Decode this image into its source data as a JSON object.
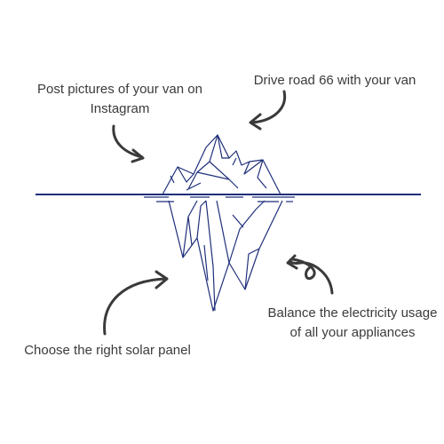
{
  "labels": {
    "post": [
      "Post pictures of your van on",
      "Instagram"
    ],
    "drive": [
      "Drive road 66 with your van"
    ],
    "balance": [
      "Balance the electricity usage",
      "of all your appliances"
    ],
    "solar": [
      "Choose the right solar panel"
    ]
  },
  "colors": {
    "iceberg_stroke": "#1f2f7a",
    "arrow": "#3a3a3a",
    "text": "#3b3b3b"
  },
  "icons": {
    "arrows": [
      "curved-arrow-icon",
      "curved-arrow-icon",
      "loop-arrow-icon",
      "curved-arrow-icon"
    ]
  }
}
